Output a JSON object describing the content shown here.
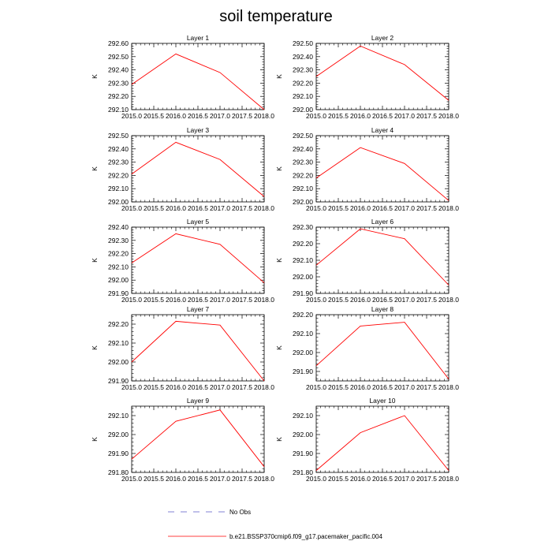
{
  "figure": {
    "title": "soil temperature",
    "legend": {
      "obs_label": "No Obs",
      "model_label": "b.e21.BSSP370cmip6.f09_g17.pacemaker_pacific.004"
    }
  },
  "colors": {
    "model_line": "#ff0000",
    "obs_line": "#5a5ac8",
    "axes": "#000000",
    "background": "#ffffff"
  },
  "chart_data": [
    {
      "type": "line",
      "title": "Layer 1",
      "ylabel": "K",
      "xlabel": "",
      "xlim": [
        2015.0,
        2018.0
      ],
      "ylim": [
        292.1,
        292.6
      ],
      "xticks": [
        "2015.0",
        "2015.5",
        "2016.0",
        "2016.5",
        "2017.0",
        "2017.5",
        "2018.0"
      ],
      "yticks": [
        "292.10",
        "292.20",
        "292.30",
        "292.40",
        "292.50",
        "292.60"
      ],
      "series": [
        {
          "x": [
            2015,
            2016,
            2017,
            2018
          ],
          "values": [
            292.29,
            292.52,
            292.38,
            292.1
          ]
        }
      ]
    },
    {
      "type": "line",
      "title": "Layer 2",
      "ylabel": "K",
      "xlabel": "",
      "xlim": [
        2015.0,
        2018.0
      ],
      "ylim": [
        292.0,
        292.5
      ],
      "xticks": [
        "2015.0",
        "2015.5",
        "2016.0",
        "2016.5",
        "2017.0",
        "2017.5",
        "2018.0"
      ],
      "yticks": [
        "292.00",
        "292.10",
        "292.20",
        "292.30",
        "292.40",
        "292.50"
      ],
      "series": [
        {
          "x": [
            2015,
            2016,
            2017,
            2018
          ],
          "values": [
            292.25,
            292.48,
            292.34,
            292.07
          ]
        }
      ]
    },
    {
      "type": "line",
      "title": "Layer 3",
      "ylabel": "K",
      "xlabel": "",
      "xlim": [
        2015.0,
        2018.0
      ],
      "ylim": [
        292.0,
        292.5
      ],
      "xticks": [
        "2015.0",
        "2015.5",
        "2016.0",
        "2016.5",
        "2017.0",
        "2017.5",
        "2018.0"
      ],
      "yticks": [
        "292.00",
        "292.10",
        "292.20",
        "292.30",
        "292.40",
        "292.50"
      ],
      "series": [
        {
          "x": [
            2015,
            2016,
            2017,
            2018
          ],
          "values": [
            292.21,
            292.45,
            292.32,
            292.04
          ]
        }
      ]
    },
    {
      "type": "line",
      "title": "Layer 4",
      "ylabel": "K",
      "xlabel": "",
      "xlim": [
        2015.0,
        2018.0
      ],
      "ylim": [
        292.0,
        292.5
      ],
      "xticks": [
        "2015.0",
        "2015.5",
        "2016.0",
        "2016.5",
        "2017.0",
        "2017.5",
        "2018.0"
      ],
      "yticks": [
        "292.00",
        "292.10",
        "292.20",
        "292.30",
        "292.40",
        "292.50"
      ],
      "series": [
        {
          "x": [
            2015,
            2016,
            2017,
            2018
          ],
          "values": [
            292.18,
            292.41,
            292.29,
            292.01
          ]
        }
      ]
    },
    {
      "type": "line",
      "title": "Layer 5",
      "ylabel": "K",
      "xlabel": "",
      "xlim": [
        2015.0,
        2018.0
      ],
      "ylim": [
        291.9,
        292.4
      ],
      "xticks": [
        "2015.0",
        "2015.5",
        "2016.0",
        "2016.5",
        "2017.0",
        "2017.5",
        "2018.0"
      ],
      "yticks": [
        "291.90",
        "292.00",
        "292.10",
        "292.20",
        "292.30",
        "292.40"
      ],
      "series": [
        {
          "x": [
            2015,
            2016,
            2017,
            2018
          ],
          "values": [
            292.13,
            292.35,
            292.27,
            291.98
          ]
        }
      ]
    },
    {
      "type": "line",
      "title": "Layer 6",
      "ylabel": "K",
      "xlabel": "",
      "xlim": [
        2015.0,
        2018.0
      ],
      "ylim": [
        291.9,
        292.3
      ],
      "xticks": [
        "2015.0",
        "2015.5",
        "2016.0",
        "2016.5",
        "2017.0",
        "2017.5",
        "2018.0"
      ],
      "yticks": [
        "291.90",
        "292.00",
        "292.10",
        "292.20",
        "292.30"
      ],
      "series": [
        {
          "x": [
            2015,
            2016,
            2017,
            2018
          ],
          "values": [
            292.07,
            292.29,
            292.23,
            291.95
          ]
        }
      ]
    },
    {
      "type": "line",
      "title": "Layer 7",
      "ylabel": "K",
      "xlabel": "",
      "xlim": [
        2015.0,
        2018.0
      ],
      "ylim": [
        291.9,
        292.25
      ],
      "xticks": [
        "2015.0",
        "2015.5",
        "2016.0",
        "2016.5",
        "2017.0",
        "2017.5",
        "2018.0"
      ],
      "yticks": [
        "291.90",
        "292.00",
        "292.10",
        "292.20"
      ],
      "series": [
        {
          "x": [
            2015,
            2016,
            2017,
            2018
          ],
          "values": [
            292.0,
            292.215,
            292.195,
            291.9
          ]
        }
      ]
    },
    {
      "type": "line",
      "title": "Layer 8",
      "ylabel": "K",
      "xlabel": "",
      "xlim": [
        2015.0,
        2018.0
      ],
      "ylim": [
        291.85,
        292.2
      ],
      "xticks": [
        "2015.0",
        "2015.5",
        "2016.0",
        "2016.5",
        "2017.0",
        "2017.5",
        "2018.0"
      ],
      "yticks": [
        "291.90",
        "292.00",
        "292.10",
        "292.20"
      ],
      "series": [
        {
          "x": [
            2015,
            2016,
            2017,
            2018
          ],
          "values": [
            291.93,
            292.14,
            292.16,
            291.86
          ]
        }
      ]
    },
    {
      "type": "line",
      "title": "Layer 9",
      "ylabel": "K",
      "xlabel": "",
      "xlim": [
        2015.0,
        2018.0
      ],
      "ylim": [
        291.8,
        292.15
      ],
      "xticks": [
        "2015.0",
        "2015.5",
        "2016.0",
        "2016.5",
        "2017.0",
        "2017.5",
        "2018.0"
      ],
      "yticks": [
        "291.80",
        "291.90",
        "292.00",
        "292.10"
      ],
      "series": [
        {
          "x": [
            2015,
            2016,
            2017,
            2018
          ],
          "values": [
            291.87,
            292.07,
            292.13,
            291.83
          ]
        }
      ]
    },
    {
      "type": "line",
      "title": "Layer 10",
      "ylabel": "K",
      "xlabel": "",
      "xlim": [
        2015.0,
        2018.0
      ],
      "ylim": [
        291.8,
        292.15
      ],
      "xticks": [
        "2015.0",
        "2015.5",
        "2016.0",
        "2016.5",
        "2017.0",
        "2017.5",
        "2018.0"
      ],
      "yticks": [
        "291.80",
        "291.90",
        "292.00",
        "292.10"
      ],
      "series": [
        {
          "x": [
            2015,
            2016,
            2017,
            2018
          ],
          "values": [
            291.81,
            292.01,
            292.1,
            291.81
          ]
        }
      ]
    }
  ]
}
